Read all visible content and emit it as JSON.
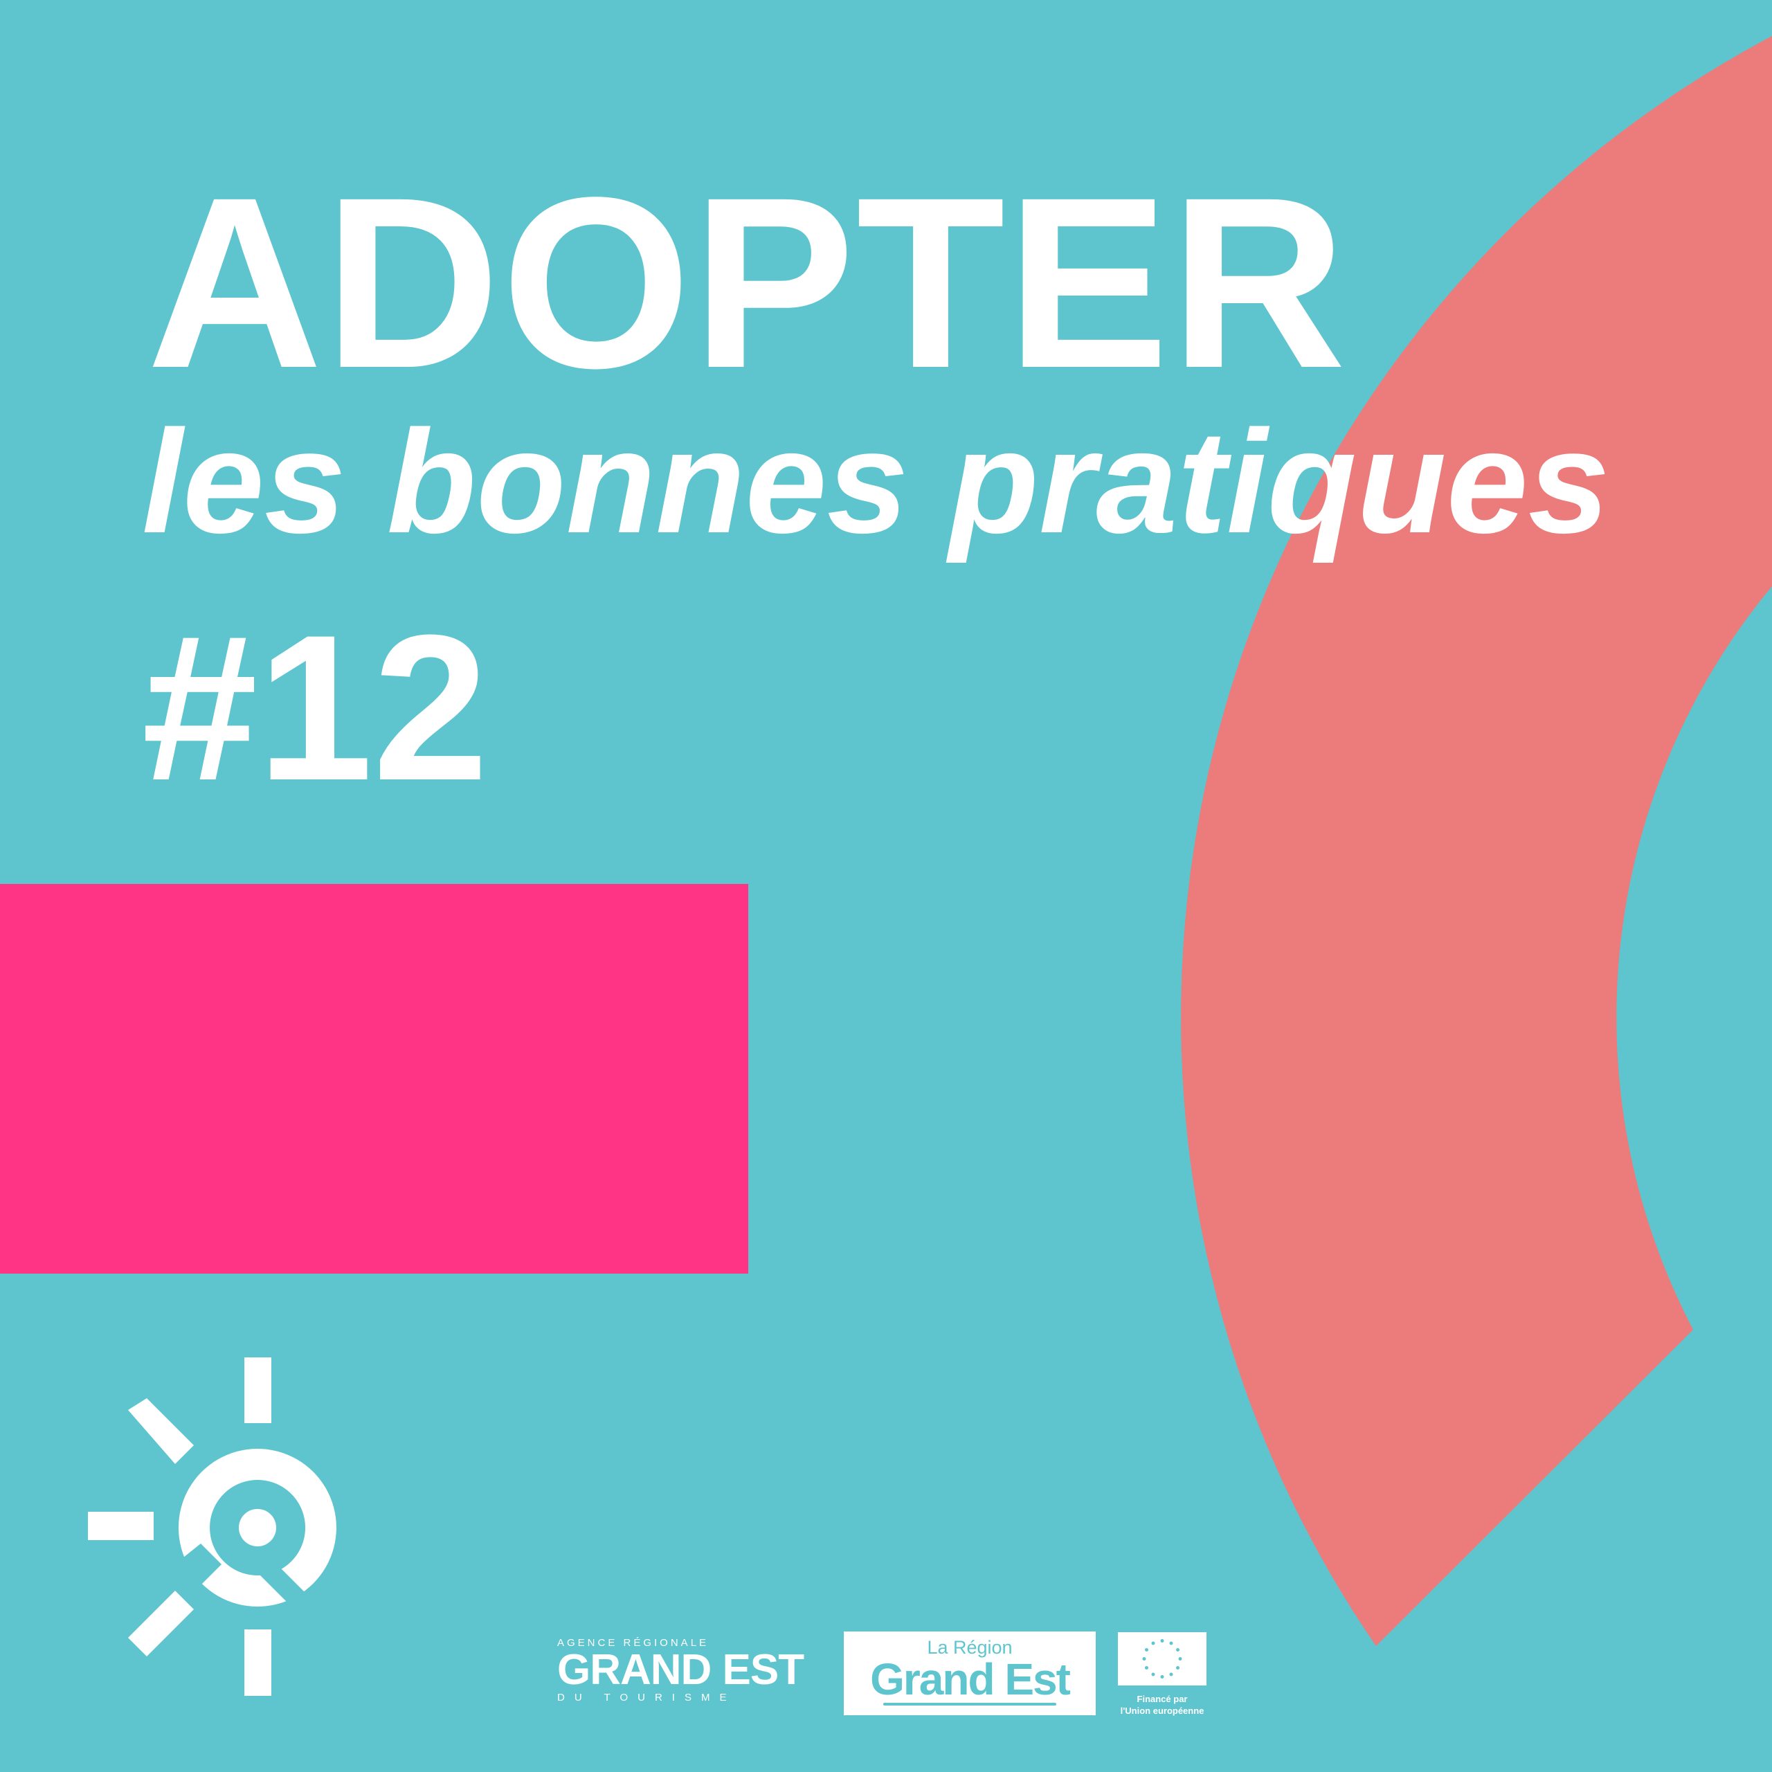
{
  "colors": {
    "background": "#5EC5CE",
    "pink": "#FF3485",
    "salmon": "#EC7B7B",
    "text": "#FFFFFF"
  },
  "headline": {
    "title": "ADOPTER",
    "subtitle": "les bonnes pratiques",
    "number": "#12"
  },
  "logos": {
    "agency": {
      "top": "AGENCE RÉGIONALE",
      "name": "GRAND EST",
      "bottom": "DU TOURISME"
    },
    "region": {
      "top": "La Région",
      "name": "Grand Est"
    },
    "eu": {
      "line1": "Financé par",
      "line2": "l'Union européenne",
      "icon": "eu-flag-icon"
    }
  }
}
